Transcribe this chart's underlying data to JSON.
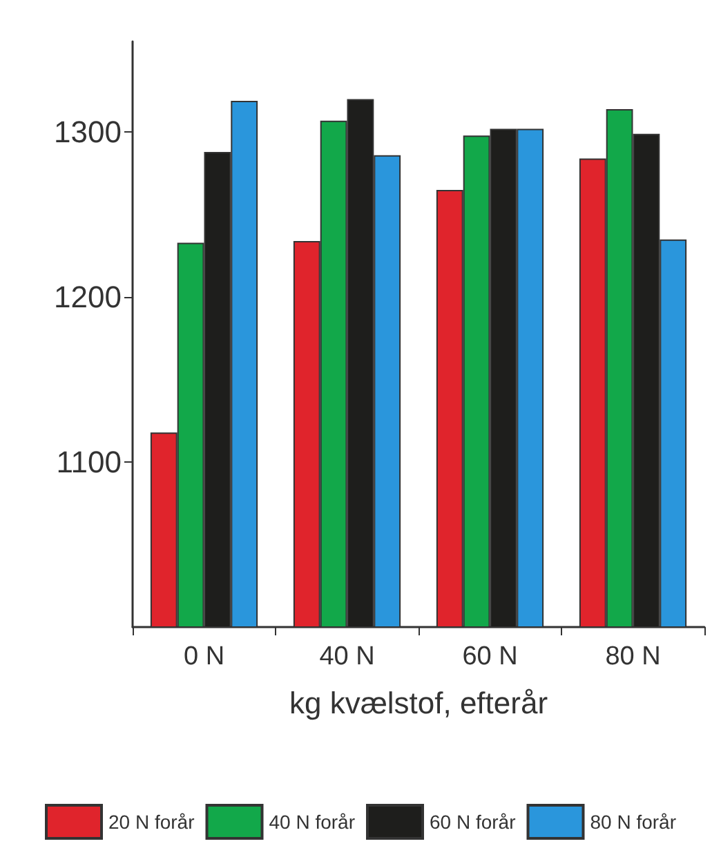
{
  "chart_data": {
    "type": "bar",
    "xlabel": "kg kvælstof, efterår",
    "categories": [
      "0 N",
      "40 N",
      "60 N",
      "80 N"
    ],
    "series": [
      {
        "name": "20 N forår",
        "color": "#e0242c",
        "values": [
          1118,
          1234,
          1265,
          1284
        ]
      },
      {
        "name": "40 N forår",
        "color": "#12a84a",
        "values": [
          1233,
          1307,
          1298,
          1314
        ]
      },
      {
        "name": "60 N forår",
        "color": "#1e1e1c",
        "values": [
          1288,
          1320,
          1302,
          1299
        ]
      },
      {
        "name": "80 N forår",
        "color": "#2a96dc",
        "values": [
          1319,
          1286,
          1302,
          1235
        ]
      }
    ],
    "ylim": [
      1000,
      1355
    ],
    "yticks": [
      1100,
      1200,
      1300
    ],
    "grid": false,
    "legend": "bottom"
  }
}
